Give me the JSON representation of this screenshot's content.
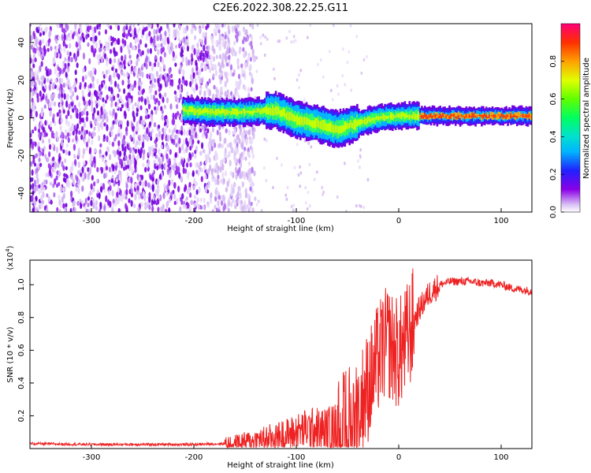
{
  "title": "C2E6.2022.308.22.25.G11",
  "chart_data": [
    {
      "type": "heatmap",
      "xlabel": "Height of straight line (km)",
      "ylabel": "Frequency (Hz)",
      "xlim": [
        -360,
        130
      ],
      "ylim": [
        -50,
        50
      ],
      "x_ticks": [
        -300,
        -200,
        -100,
        0,
        100
      ],
      "y_ticks": [
        -40,
        -20,
        0,
        20,
        40
      ],
      "colorbar": {
        "label": "Normalized spectral amplitude",
        "range": [
          0.0,
          1.0
        ],
        "ticks": [
          0.0,
          0.2,
          0.4,
          0.6,
          0.8
        ],
        "colors": [
          "#ffffff",
          "#c8a0f0",
          "#8a00e6",
          "#2020ff",
          "#00c8ff",
          "#00e0a0",
          "#20ff00",
          "#c8ff00",
          "#ffc000",
          "#ff3c00",
          "#ff0078"
        ]
      },
      "ridge": {
        "x": [
          -210,
          -180,
          -150,
          -120,
          -100,
          -80,
          -60,
          -40,
          -20,
          0,
          40,
          80,
          100,
          130
        ],
        "frequency": [
          4,
          3,
          3,
          4,
          -1,
          -3,
          -6,
          -3,
          0,
          1,
          1,
          1,
          1,
          1
        ]
      }
    },
    {
      "type": "line",
      "xlabel": "Height of straight line (km)",
      "ylabel": "SNR (10 * v/v)",
      "y_multiplier": "(x10^4)",
      "xlim": [
        -360,
        130
      ],
      "ylim": [
        0,
        1.15
      ],
      "x_ticks": [
        -300,
        -200,
        -100,
        0,
        100
      ],
      "y_ticks": [
        0.2,
        0.4,
        0.6,
        0.8,
        1.0
      ],
      "series": [
        {
          "color": "#ee2222",
          "x": [
            -360,
            -300,
            -250,
            -200,
            -170,
            -150,
            -130,
            -110,
            -100,
            -90,
            -80,
            -70,
            -60,
            -50,
            -45,
            -40,
            -35,
            -30,
            -25,
            -20,
            -15,
            -10,
            -5,
            0,
            5,
            10,
            15,
            20,
            25,
            30,
            40,
            50,
            60,
            70,
            80,
            90,
            100,
            110,
            120,
            130
          ],
          "y": [
            0.03,
            0.025,
            0.025,
            0.025,
            0.03,
            0.04,
            0.06,
            0.08,
            0.1,
            0.12,
            0.12,
            0.11,
            0.13,
            0.16,
            0.2,
            0.25,
            0.3,
            0.38,
            0.45,
            0.55,
            0.62,
            0.65,
            0.6,
            0.58,
            0.62,
            0.7,
            0.78,
            0.85,
            0.9,
            0.95,
            1.0,
            1.02,
            1.02,
            1.02,
            1.01,
            1.01,
            1.0,
            0.98,
            0.97,
            0.96
          ]
        }
      ]
    }
  ]
}
